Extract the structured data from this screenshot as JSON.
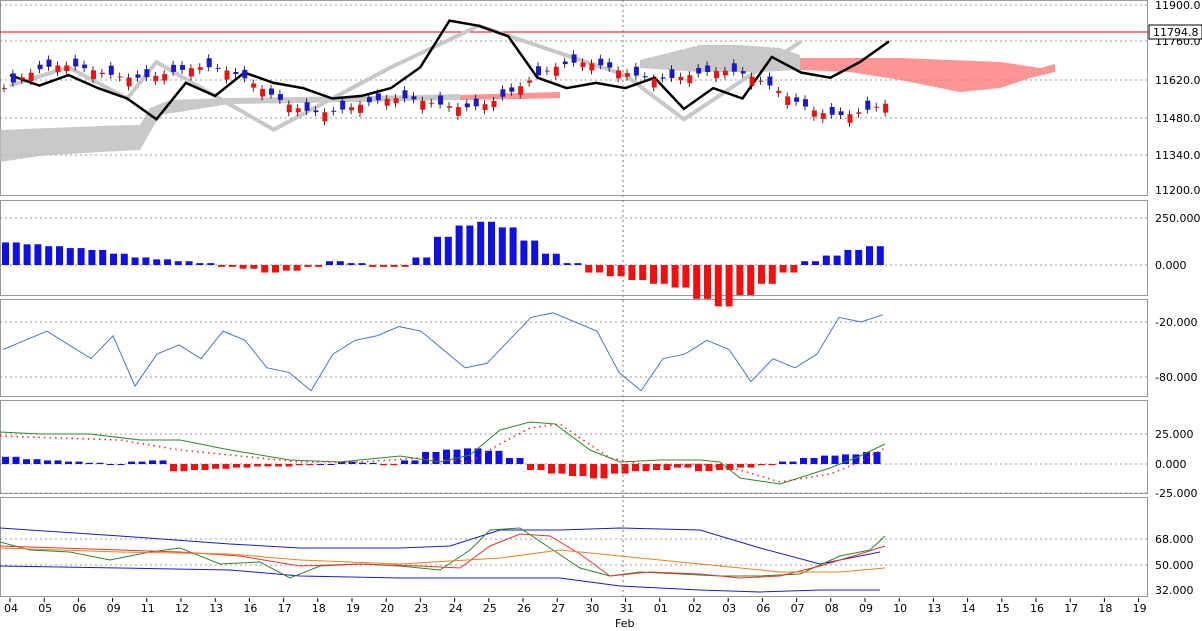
{
  "chart_data": [
    {
      "type": "candlestick",
      "title": "",
      "y_ticks": [
        "11900.0",
        "11760.0",
        "11620.0",
        "11480.0",
        "11340.0",
        "11200.0"
      ],
      "price_marker": "11794.8",
      "y_min": 11200,
      "y_max": 11920,
      "indicators": [
        "ichimoku-cloud",
        "zigzag",
        "fractals",
        "chikou-line"
      ],
      "chikou": [
        [
          0,
          11650
        ],
        [
          1,
          11610
        ],
        [
          2,
          11650
        ],
        [
          3,
          11600
        ],
        [
          4,
          11560
        ],
        [
          5,
          11480
        ],
        [
          6,
          11620
        ],
        [
          7,
          11570
        ],
        [
          8,
          11660
        ],
        [
          9,
          11620
        ],
        [
          10,
          11600
        ],
        [
          11,
          11560
        ],
        [
          12,
          11570
        ],
        [
          13,
          11600
        ],
        [
          14,
          11680
        ],
        [
          15,
          11860
        ],
        [
          16,
          11840
        ],
        [
          17,
          11800
        ],
        [
          18,
          11640
        ],
        [
          19,
          11600
        ],
        [
          20,
          11620
        ],
        [
          21,
          11600
        ],
        [
          22,
          11640
        ],
        [
          23,
          11520
        ],
        [
          24,
          11600
        ],
        [
          25,
          11560
        ],
        [
          26,
          11720
        ],
        [
          27,
          11660
        ],
        [
          28,
          11640
        ],
        [
          29,
          11700
        ],
        [
          30,
          11780
        ]
      ],
      "zigzag": [
        [
          0,
          11610
        ],
        [
          2,
          11680
        ],
        [
          4,
          11560
        ],
        [
          5,
          11700
        ],
        [
          9,
          11440
        ],
        [
          13,
          11680
        ],
        [
          16,
          11840
        ],
        [
          21,
          11650
        ],
        [
          23,
          11480
        ],
        [
          27,
          11780
        ]
      ]
    },
    {
      "type": "histogram",
      "y_ticks": [
        "250.000",
        "0.000"
      ],
      "values": [
        120,
        110,
        100,
        90,
        80,
        60,
        40,
        30,
        20,
        10,
        -10,
        -20,
        -40,
        -30,
        -10,
        20,
        10,
        -10,
        -10,
        40,
        150,
        210,
        230,
        200,
        130,
        60,
        10,
        -40,
        -60,
        -80,
        -100,
        -120,
        -180,
        -220,
        -160,
        -100,
        -40,
        20,
        50,
        80,
        100
      ]
    },
    {
      "type": "line",
      "y_ticks": [
        "-20.000",
        "-80.000"
      ],
      "values": [
        -50,
        -40,
        -30,
        -45,
        -60,
        -35,
        -90,
        -55,
        -45,
        -60,
        -30,
        -40,
        -70,
        -75,
        -95,
        -55,
        -40,
        -35,
        -25,
        -30,
        -50,
        -70,
        -65,
        -40,
        -15,
        -10,
        -20,
        -30,
        -75,
        -95,
        -60,
        -55,
        -40,
        -50,
        -85,
        -60,
        -70,
        -55,
        -15,
        -20,
        -12
      ]
    },
    {
      "type": "bar-line",
      "y_ticks": [
        "25.000",
        "0.000",
        "-25.000"
      ],
      "hist": [
        6,
        4,
        3,
        2,
        1,
        0,
        2,
        3,
        -6,
        -5,
        -4,
        -3,
        -2,
        -2,
        -1,
        0,
        2,
        1,
        -1,
        3,
        10,
        12,
        13,
        11,
        5,
        -5,
        -8,
        -10,
        -12,
        -8,
        -6,
        -5,
        -3,
        -6,
        -5,
        -3,
        -1,
        2,
        5,
        7,
        8,
        10
      ]
    },
    {
      "type": "line",
      "y_ticks": [
        "68.000",
        "50.000",
        "32.000"
      ],
      "series": [
        {
          "values": [
            70,
            64,
            62,
            58,
            60,
            56,
            52,
            50,
            49,
            48,
            50,
            64,
            68,
            66,
            60,
            52,
            46,
            42,
            44,
            48,
            52,
            60,
            66,
            70,
            68
          ]
        },
        {
          "values": [
            64,
            62,
            61,
            60,
            58,
            56,
            55,
            54,
            52,
            51,
            50,
            55,
            58,
            60,
            58,
            54,
            50,
            47,
            45,
            46,
            48,
            52,
            56,
            62,
            66
          ]
        }
      ]
    }
  ],
  "x_axis": {
    "ticks": [
      "04",
      "05",
      "06",
      "09",
      "11",
      "12",
      "13",
      "16",
      "17",
      "18",
      "19",
      "20",
      "23",
      "24",
      "25",
      "26",
      "27",
      "30",
      "31",
      "01",
      "02",
      "03",
      "06",
      "07",
      "08",
      "09",
      "10",
      "13",
      "14",
      "15",
      "16",
      "17",
      "18",
      "19"
    ],
    "month_label": "Feb"
  }
}
